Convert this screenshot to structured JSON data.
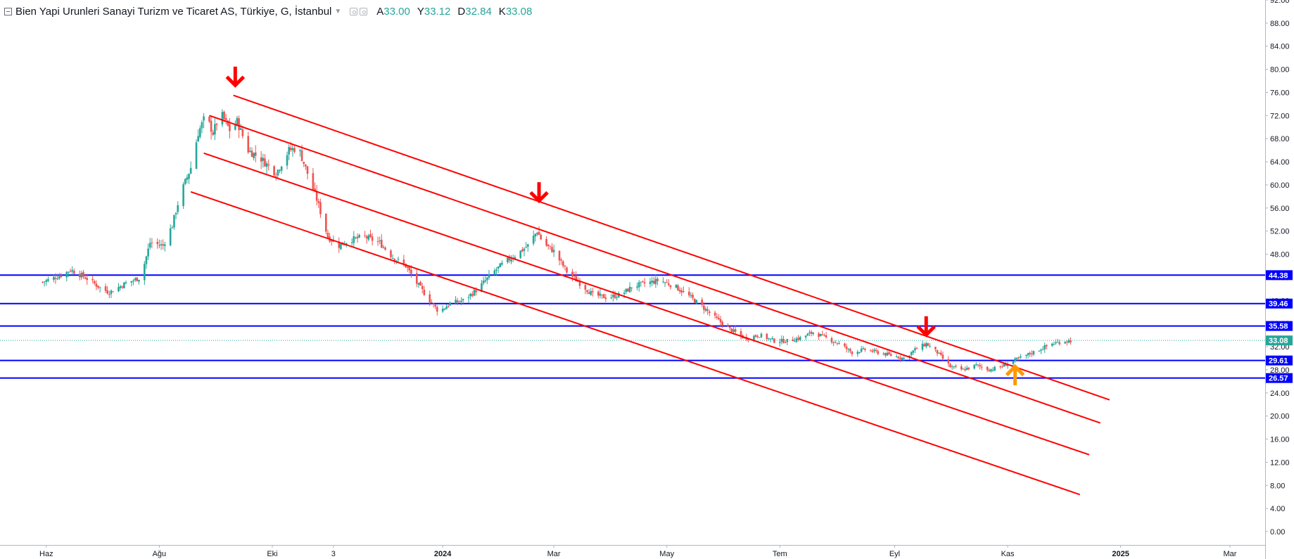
{
  "legend": {
    "title": "Bien Yapi Urunleri Sanayi Turizm ve Ticaret AS, Türkiye, G, İstanbul",
    "open_label": "A",
    "open": "33.00",
    "high_label": "Y",
    "high": "33.12",
    "low_label": "D",
    "low": "32.84",
    "close_label": "K",
    "close": "33.08"
  },
  "colors": {
    "up": "#26a69a",
    "down": "#ef5350",
    "channel": "#ff0000",
    "level": "#0000ff",
    "arrow_down": "#ff0000",
    "arrow_up": "#ff9800",
    "last_price": "#26a69a"
  },
  "chart_data": {
    "type": "candlestick",
    "y_axis": {
      "min": 0,
      "max": 92,
      "step": 4,
      "ticks": [
        "0.00",
        "4.00",
        "8.00",
        "12.00",
        "16.00",
        "20.00",
        "24.00",
        "28.00",
        "32.00",
        "36.00",
        "40.00",
        "44.00",
        "48.00",
        "52.00",
        "56.00",
        "60.00",
        "64.00",
        "68.00",
        "72.00",
        "76.00",
        "80.00",
        "84.00",
        "88.00",
        "92.00"
      ]
    },
    "x_axis": {
      "start": "2023-05-07",
      "end": "2025-03-20",
      "ticks": [
        {
          "label": "Haz",
          "date": "2023-06-01",
          "bold": false
        },
        {
          "label": "Ağu",
          "date": "2023-08-01",
          "bold": false
        },
        {
          "label": "Eki",
          "date": "2023-10-01",
          "bold": false
        },
        {
          "label": "3",
          "date": "2023-11-03",
          "bold": false
        },
        {
          "label": "2024",
          "date": "2024-01-01",
          "bold": true
        },
        {
          "label": "Mar",
          "date": "2024-03-01",
          "bold": false
        },
        {
          "label": "May",
          "date": "2024-05-01",
          "bold": false
        },
        {
          "label": "Tem",
          "date": "2024-07-01",
          "bold": false
        },
        {
          "label": "Eyl",
          "date": "2024-09-01",
          "bold": false
        },
        {
          "label": "Kas",
          "date": "2024-11-01",
          "bold": false
        },
        {
          "label": "2025",
          "date": "2025-01-01",
          "bold": true
        },
        {
          "label": "Mar",
          "date": "2025-03-01",
          "bold": false
        }
      ]
    },
    "price_path": [
      {
        "date": "2023-05-30",
        "price": 43.2
      },
      {
        "date": "2023-06-10",
        "price": 44.5
      },
      {
        "date": "2023-06-14",
        "price": 45.3
      },
      {
        "date": "2023-06-22",
        "price": 44.0
      },
      {
        "date": "2023-07-01",
        "price": 42.0
      },
      {
        "date": "2023-07-05",
        "price": 41.4
      },
      {
        "date": "2023-07-14",
        "price": 43.0
      },
      {
        "date": "2023-07-22",
        "price": 44.0
      },
      {
        "date": "2023-07-27",
        "price": 50.0
      },
      {
        "date": "2023-08-03",
        "price": 49.5
      },
      {
        "date": "2023-08-08",
        "price": 53.0
      },
      {
        "date": "2023-08-12",
        "price": 58.0
      },
      {
        "date": "2023-08-18",
        "price": 63.0
      },
      {
        "date": "2023-08-22",
        "price": 69.0
      },
      {
        "date": "2023-08-26",
        "price": 72.0
      },
      {
        "date": "2023-08-30",
        "price": 69.0
      },
      {
        "date": "2023-09-03",
        "price": 72.5
      },
      {
        "date": "2023-09-08",
        "price": 69.5
      },
      {
        "date": "2023-09-12",
        "price": 71.0
      },
      {
        "date": "2023-09-18",
        "price": 66.0
      },
      {
        "date": "2023-09-25",
        "price": 64.5
      },
      {
        "date": "2023-10-03",
        "price": 62.0
      },
      {
        "date": "2023-10-10",
        "price": 66.0
      },
      {
        "date": "2023-10-15",
        "price": 66.5
      },
      {
        "date": "2023-10-20",
        "price": 62.0
      },
      {
        "date": "2023-10-25",
        "price": 57.5
      },
      {
        "date": "2023-10-31",
        "price": 51.0
      },
      {
        "date": "2023-11-06",
        "price": 49.5
      },
      {
        "date": "2023-11-12",
        "price": 50.5
      },
      {
        "date": "2023-11-20",
        "price": 51.0
      },
      {
        "date": "2023-11-28",
        "price": 50.0
      },
      {
        "date": "2023-12-05",
        "price": 47.5
      },
      {
        "date": "2023-12-12",
        "price": 46.0
      },
      {
        "date": "2023-12-18",
        "price": 43.0
      },
      {
        "date": "2023-12-25",
        "price": 40.0
      },
      {
        "date": "2023-12-30",
        "price": 38.0
      },
      {
        "date": "2024-01-05",
        "price": 39.5
      },
      {
        "date": "2024-01-12",
        "price": 40.0
      },
      {
        "date": "2024-01-20",
        "price": 42.0
      },
      {
        "date": "2024-01-27",
        "price": 44.5
      },
      {
        "date": "2024-02-03",
        "price": 46.5
      },
      {
        "date": "2024-02-10",
        "price": 48.0
      },
      {
        "date": "2024-02-16",
        "price": 49.5
      },
      {
        "date": "2024-02-21",
        "price": 52.0
      },
      {
        "date": "2024-02-24",
        "price": 50.0
      },
      {
        "date": "2024-03-01",
        "price": 48.5
      },
      {
        "date": "2024-03-08",
        "price": 45.0
      },
      {
        "date": "2024-03-15",
        "price": 43.0
      },
      {
        "date": "2024-03-22",
        "price": 41.0
      },
      {
        "date": "2024-03-30",
        "price": 40.5
      },
      {
        "date": "2024-04-06",
        "price": 41.0
      },
      {
        "date": "2024-04-13",
        "price": 42.5
      },
      {
        "date": "2024-04-20",
        "price": 43.0
      },
      {
        "date": "2024-04-27",
        "price": 43.5
      },
      {
        "date": "2024-05-05",
        "price": 42.5
      },
      {
        "date": "2024-05-12",
        "price": 41.0
      },
      {
        "date": "2024-05-20",
        "price": 39.0
      },
      {
        "date": "2024-05-27",
        "price": 37.0
      },
      {
        "date": "2024-06-04",
        "price": 35.0
      },
      {
        "date": "2024-06-12",
        "price": 33.5
      },
      {
        "date": "2024-06-20",
        "price": 34.0
      },
      {
        "date": "2024-06-28",
        "price": 33.0
      },
      {
        "date": "2024-07-05",
        "price": 33.0
      },
      {
        "date": "2024-07-12",
        "price": 33.5
      },
      {
        "date": "2024-07-19",
        "price": 34.5
      },
      {
        "date": "2024-07-26",
        "price": 33.5
      },
      {
        "date": "2024-08-02",
        "price": 32.5
      },
      {
        "date": "2024-08-09",
        "price": 31.0
      },
      {
        "date": "2024-08-16",
        "price": 31.5
      },
      {
        "date": "2024-08-23",
        "price": 31.0
      },
      {
        "date": "2024-08-30",
        "price": 30.5
      },
      {
        "date": "2024-09-06",
        "price": 30.0
      },
      {
        "date": "2024-09-12",
        "price": 31.5
      },
      {
        "date": "2024-09-18",
        "price": 32.5
      },
      {
        "date": "2024-09-24",
        "price": 31.0
      },
      {
        "date": "2024-10-01",
        "price": 28.5
      },
      {
        "date": "2024-10-08",
        "price": 28.0
      },
      {
        "date": "2024-10-15",
        "price": 28.8
      },
      {
        "date": "2024-10-22",
        "price": 28.0
      },
      {
        "date": "2024-10-28",
        "price": 28.5
      },
      {
        "date": "2024-11-04",
        "price": 29.5
      },
      {
        "date": "2024-11-11",
        "price": 30.5
      },
      {
        "date": "2024-11-18",
        "price": 31.5
      },
      {
        "date": "2024-11-25",
        "price": 32.5
      },
      {
        "date": "2024-12-02",
        "price": 33.0
      },
      {
        "date": "2024-12-06",
        "price": 33.08
      }
    ],
    "horizontal_levels": [
      {
        "value": 44.38,
        "label": "44.38"
      },
      {
        "value": 39.46,
        "label": "39.46"
      },
      {
        "value": 35.58,
        "label": "35.58"
      },
      {
        "value": 29.61,
        "label": "29.61"
      },
      {
        "value": 26.57,
        "label": "26.57"
      }
    ],
    "last_price": {
      "value": 33.08,
      "label": "33.08"
    },
    "channel_lines": [
      {
        "start": {
          "date": "2023-09-10",
          "price": 75.5
        },
        "end": {
          "date": "2024-12-26",
          "price": 22.8
        }
      },
      {
        "start": {
          "date": "2023-08-28",
          "price": 72.0
        },
        "end": {
          "date": "2024-12-21",
          "price": 18.8
        }
      },
      {
        "start": {
          "date": "2023-08-25",
          "price": 65.5
        },
        "end": {
          "date": "2024-12-15",
          "price": 13.3
        }
      },
      {
        "start": {
          "date": "2023-08-18",
          "price": 58.8
        },
        "end": {
          "date": "2024-12-10",
          "price": 6.4
        }
      }
    ],
    "arrows": [
      {
        "dir": "down",
        "date": "2023-09-11",
        "price": 77.0
      },
      {
        "dir": "down",
        "date": "2024-02-22",
        "price": 57.0
      },
      {
        "dir": "down",
        "date": "2024-09-18",
        "price": 33.8
      },
      {
        "dir": "up",
        "date": "2024-11-05",
        "price": 28.8
      }
    ]
  }
}
